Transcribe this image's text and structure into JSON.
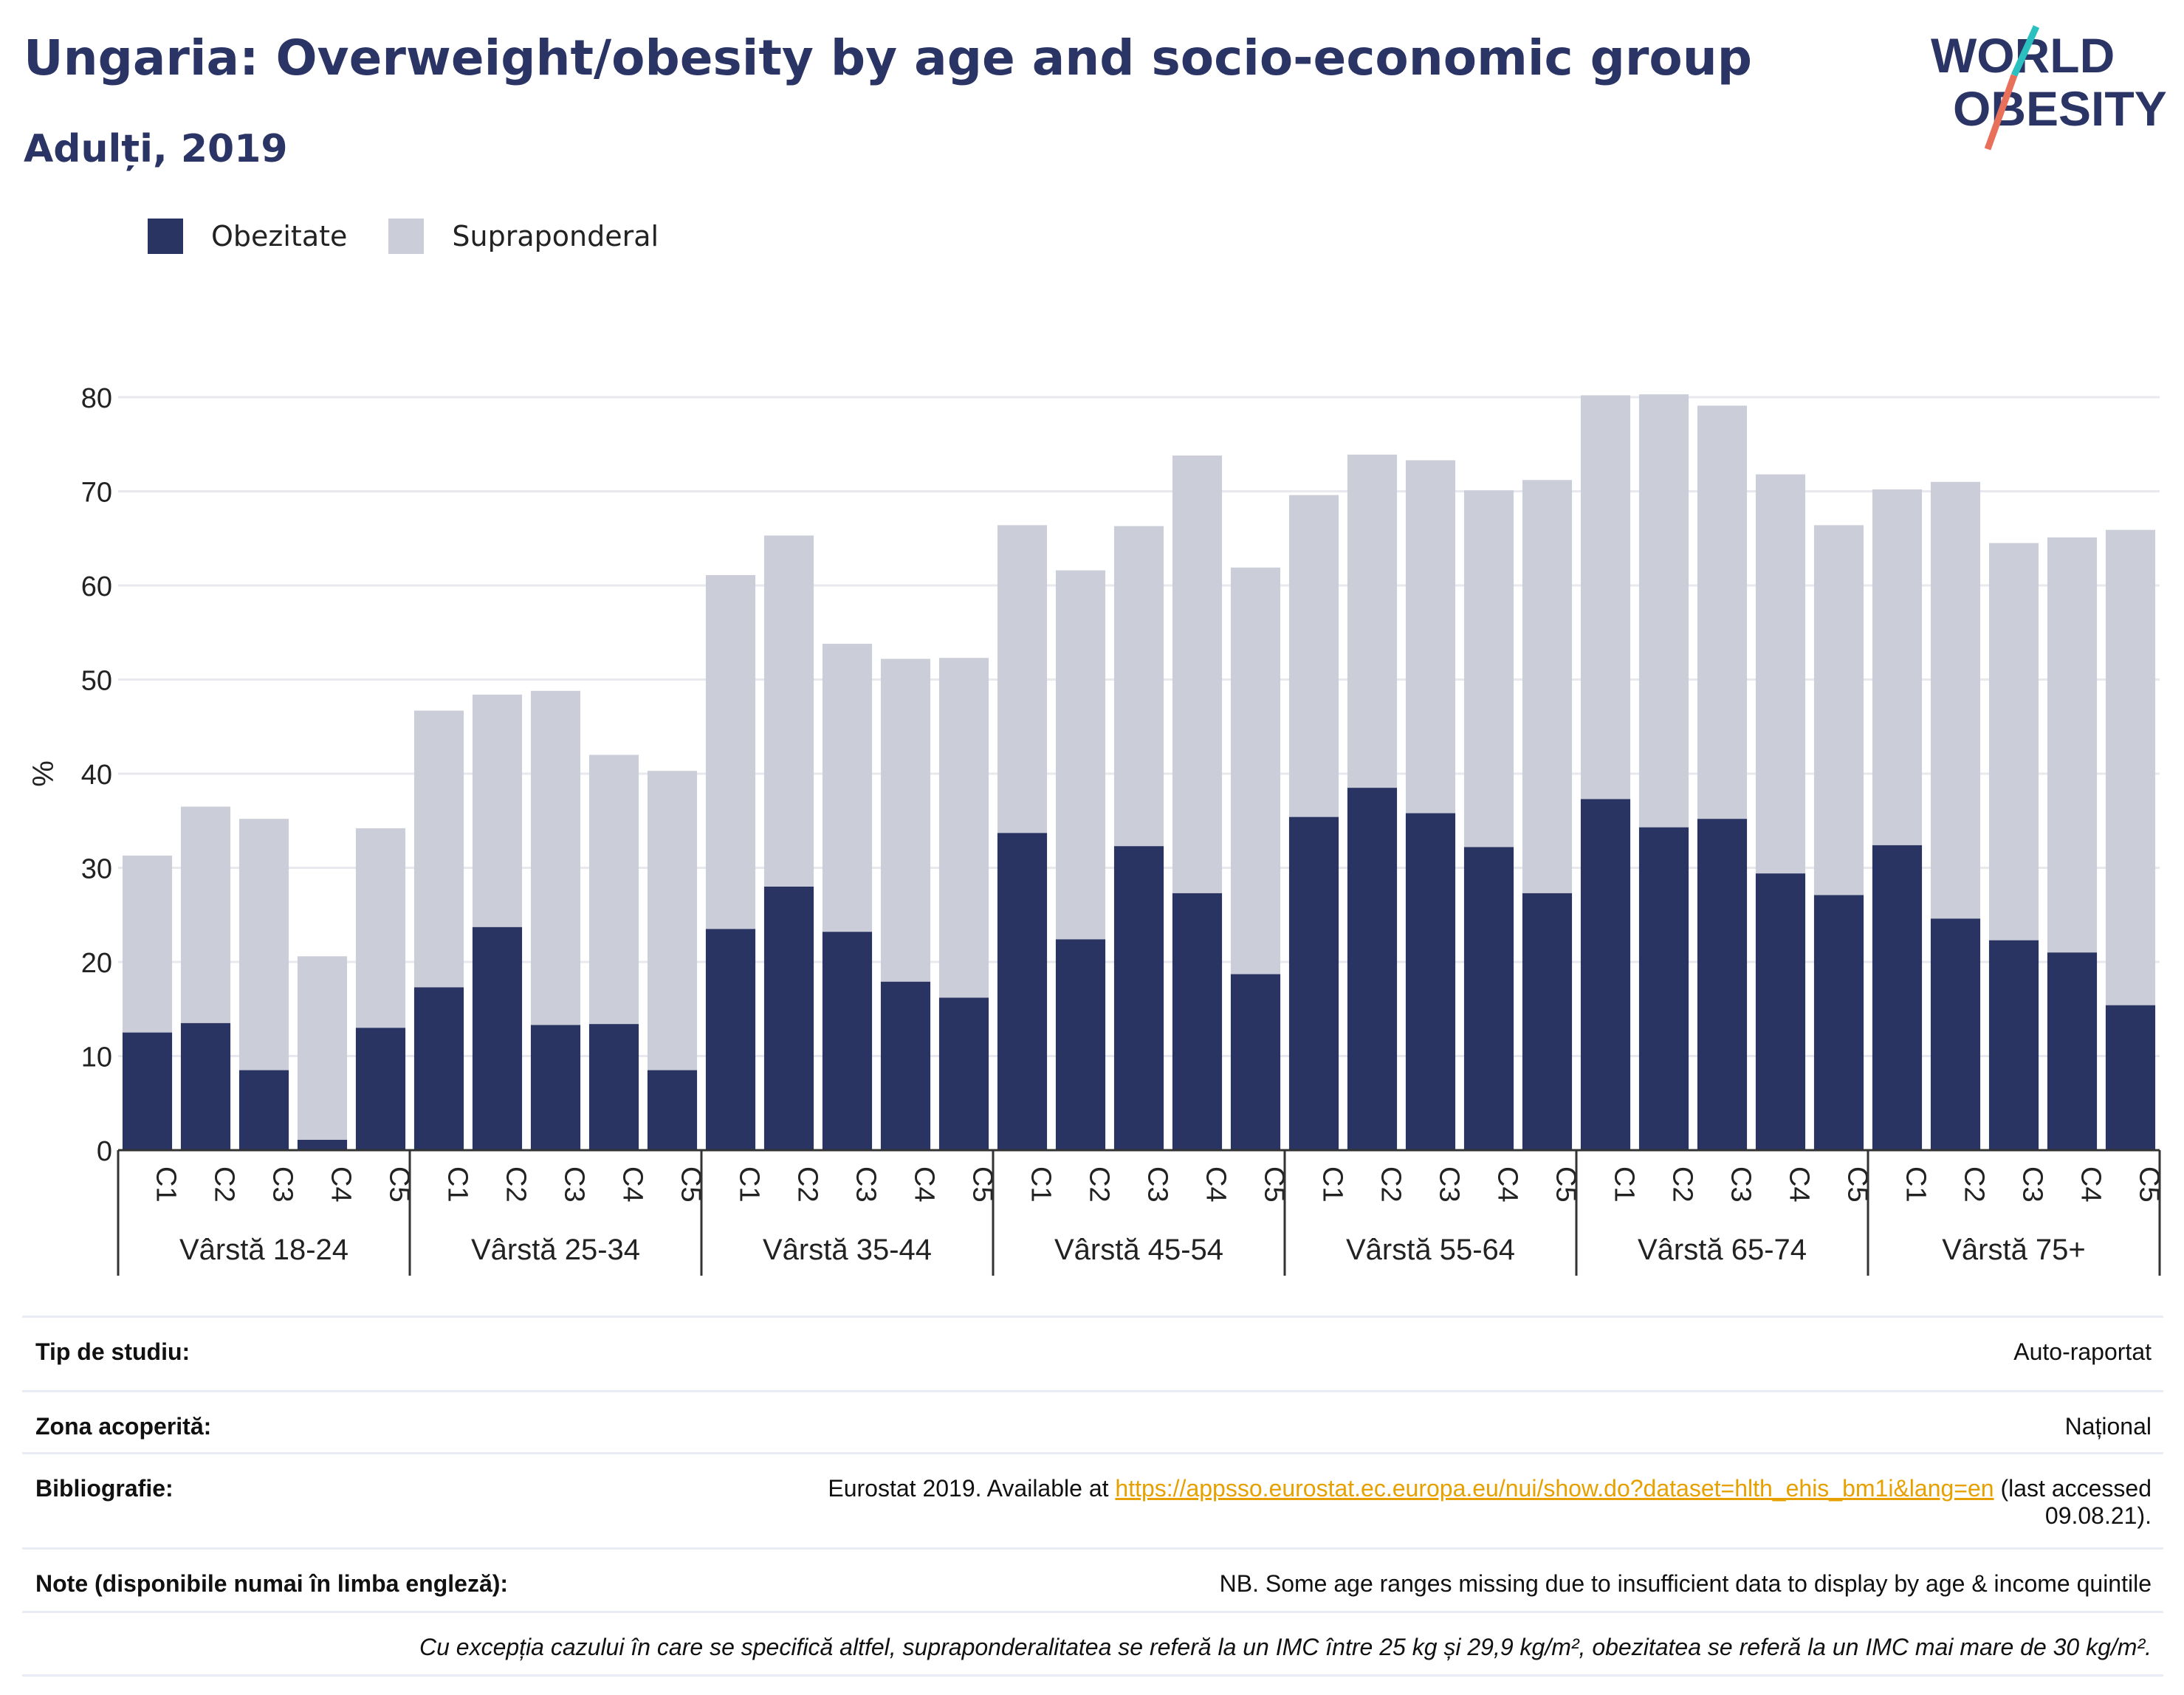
{
  "header": {
    "title": "Ungaria: Overweight/obesity by age and socio-economic group",
    "subtitle": "Adulți, 2019"
  },
  "logo": {
    "line1": "WORLD",
    "line2": "OBESITY"
  },
  "colors": {
    "obesity": "#293462",
    "overweight": "#cbcdd8",
    "accent_teal": "#2bbfbf",
    "accent_coral": "#e8705a",
    "link": "#e6a100"
  },
  "chart_data": {
    "type": "bar",
    "stacked": true,
    "ylabel": "%",
    "ylim": [
      0,
      80
    ],
    "yticks": [
      0,
      10,
      20,
      30,
      40,
      50,
      60,
      70,
      80
    ],
    "grid": true,
    "legend_position": "top-left",
    "groups": [
      "Vârstă 18-24",
      "Vârstă 25-34",
      "Vârstă 35-44",
      "Vârstă 45-54",
      "Vârstă 55-64",
      "Vârstă 65-74",
      "Vârstă 75+"
    ],
    "categories": [
      "C1",
      "C2",
      "C3",
      "C4",
      "C5"
    ],
    "series": [
      {
        "name": "Obezitate",
        "values": [
          [
            12.5,
            13.5,
            8.5,
            1.1,
            13.0
          ],
          [
            17.3,
            23.7,
            13.3,
            13.4,
            8.5
          ],
          [
            23.5,
            28.0,
            23.2,
            17.9,
            16.2
          ],
          [
            33.7,
            22.4,
            32.3,
            27.3,
            18.7
          ],
          [
            35.4,
            38.5,
            35.8,
            32.2,
            27.3
          ],
          [
            37.3,
            34.3,
            35.2,
            29.4,
            27.1
          ],
          [
            32.4,
            24.6,
            22.3,
            21.0,
            15.4
          ]
        ]
      },
      {
        "name": "Supraponderal",
        "values": [
          [
            18.8,
            23.0,
            26.7,
            19.5,
            21.2
          ],
          [
            29.4,
            24.7,
            35.5,
            28.6,
            31.8
          ],
          [
            37.6,
            37.3,
            30.6,
            34.3,
            36.1
          ],
          [
            32.7,
            39.2,
            34.0,
            46.5,
            43.2
          ],
          [
            34.2,
            35.4,
            37.5,
            37.9,
            43.9
          ],
          [
            42.9,
            46.0,
            43.9,
            42.4,
            39.3
          ],
          [
            37.8,
            46.4,
            42.2,
            44.1,
            50.5
          ]
        ]
      }
    ]
  },
  "info": {
    "rows": [
      {
        "label": "Tip de studiu:",
        "value": "Auto-raportat"
      },
      {
        "label": "Zona acoperită:",
        "value": "Național"
      }
    ],
    "biblio": {
      "label": "Bibliografie:",
      "prefix": "Eurostat 2019. Available at ",
      "link": "https://appsso.eurostat.ec.europa.eu/nui/show.do?dataset=hlth_ehis_bm1i&lang=en",
      "suffix1": " (last accessed",
      "suffix2": "09.08.21)."
    },
    "notes": {
      "label": "Note (disponibile numai în limba engleză):",
      "value": "NB. Some age ranges missing due to insufficient data to display by age & income quintile"
    },
    "footnote": "Cu excepția cazului în care se specifică altfel, supraponderalitatea se referă la un IMC între 25 kg și 29,9 kg/m², obezitatea se referă la un IMC mai mare de 30 kg/m²."
  }
}
